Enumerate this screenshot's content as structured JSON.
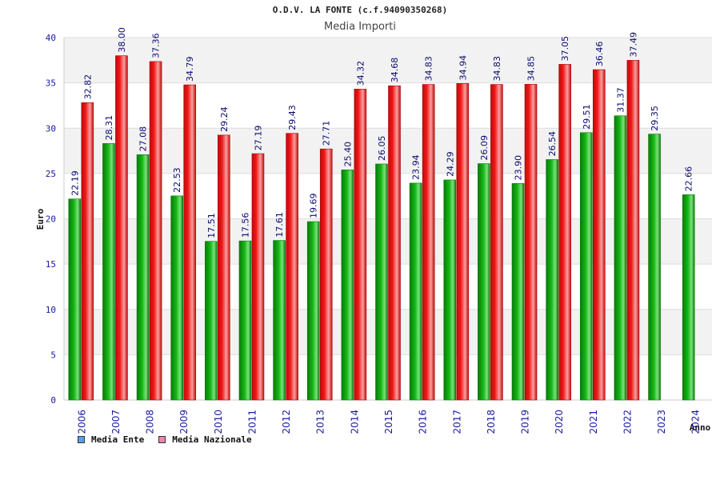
{
  "header": {
    "title": "O.D.V. LA FONTE (c.f.94090350268)",
    "subtitle": "Media Importi"
  },
  "legend": {
    "items": [
      {
        "label": "Media Ente",
        "color": "#5aa0e6"
      },
      {
        "label": "Media Nazionale",
        "color": "#e888b0"
      }
    ]
  },
  "colors": {
    "ente_bar": "#14b814",
    "ente_bar_dark": "#0a7a0a",
    "naz_bar": "#f01818",
    "naz_bar_light": "#f8a0a0",
    "axis_text": "#1a1aa0",
    "label_text": "#0a0a70"
  },
  "chart_data": {
    "type": "bar",
    "title": "O.D.V. LA FONTE (c.f.94090350268)",
    "subtitle": "Media Importi",
    "xlabel": "Anno",
    "ylabel": "Euro",
    "ylim": [
      0,
      40
    ],
    "yticks": [
      0,
      5,
      10,
      15,
      20,
      25,
      30,
      35,
      40
    ],
    "categories": [
      "2006",
      "2007",
      "2008",
      "2009",
      "2010",
      "2011",
      "2012",
      "2013",
      "2014",
      "2015",
      "2016",
      "2017",
      "2018",
      "2019",
      "2020",
      "2021",
      "2022",
      "2023",
      "2024"
    ],
    "series": [
      {
        "name": "Media Ente",
        "values": [
          22.19,
          28.31,
          27.08,
          22.53,
          17.51,
          17.56,
          17.61,
          19.69,
          25.4,
          26.05,
          23.94,
          24.29,
          26.09,
          23.9,
          26.54,
          29.51,
          31.37,
          29.35,
          22.66
        ],
        "labels": [
          "22.19",
          "28.31",
          "27.08",
          "22.53",
          "17.51",
          "17.56",
          "17.61",
          "19.69",
          "25.40",
          "26.05",
          "23.94",
          "24.29",
          "26.09",
          "23.90",
          "26.54",
          "29.51",
          "31.37",
          "29.35",
          "22.66"
        ]
      },
      {
        "name": "Media Nazionale",
        "values": [
          32.82,
          38.0,
          37.36,
          34.79,
          29.24,
          27.19,
          29.43,
          27.71,
          34.32,
          34.68,
          34.83,
          34.94,
          34.83,
          34.85,
          37.05,
          36.46,
          37.49,
          null,
          null
        ],
        "labels": [
          "32.82",
          "38.00",
          "37.36",
          "34.79",
          "29.24",
          "27.19",
          "29.43",
          "27.71",
          "34.32",
          "34.68",
          "34.83",
          "34.94",
          "34.83",
          "34.85",
          "37.05",
          "36.46",
          "37.49",
          null,
          null
        ]
      }
    ],
    "grid": true,
    "legend_position": "bottom-left"
  }
}
